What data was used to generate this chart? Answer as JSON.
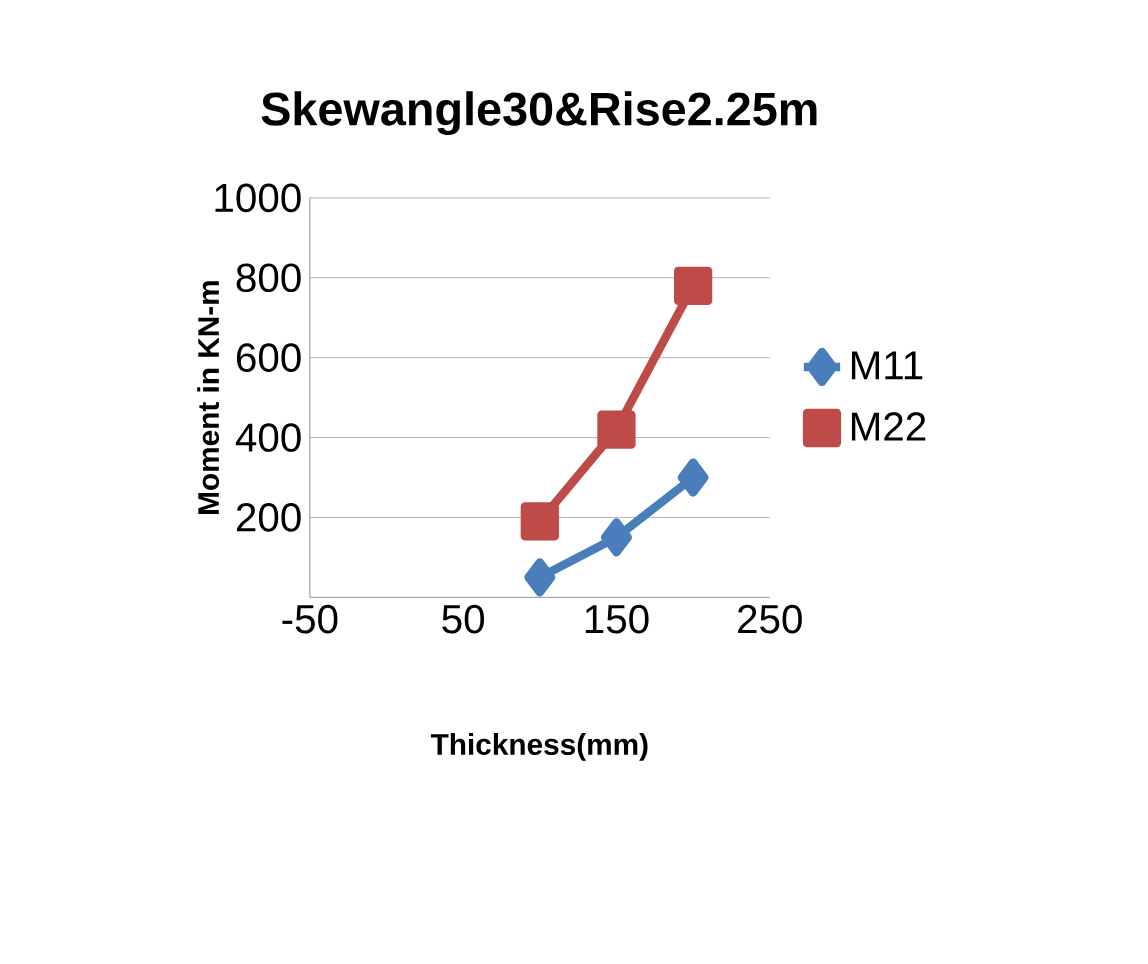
{
  "chart_data": {
    "type": "line",
    "title": "Skewangle30&Rise2.25m",
    "xlabel": "Thickness(mm)",
    "ylabel": "Moment in KN-m",
    "x": [
      100,
      150,
      200
    ],
    "series": [
      {
        "name": "M11",
        "color": "#4a7ebb",
        "marker": "diamond",
        "values": [
          50,
          150,
          300
        ]
      },
      {
        "name": "M22",
        "color": "#be4b48",
        "marker": "square",
        "values": [
          190,
          420,
          780
        ]
      }
    ],
    "xlim": [
      -50,
      250
    ],
    "xticks": [
      -50,
      50,
      150,
      250
    ],
    "ylim": [
      0,
      1000
    ],
    "yticks": [
      200,
      400,
      600,
      800,
      1000
    ],
    "grid": "y",
    "legend": "right",
    "line_style": "solid"
  }
}
